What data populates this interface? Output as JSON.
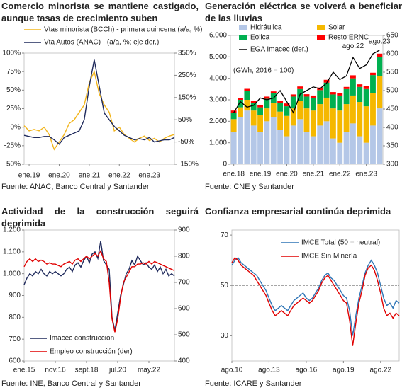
{
  "chart_data": [
    {
      "type": "line",
      "title": "Comercio minorista se mantiene castigado, aunque tasas de crecimiento suben",
      "source": "Fuente: ANAC, Banco Central y Santander",
      "categories": [
        null,
        "ene.19",
        null,
        null,
        null,
        null,
        null,
        "ene.20",
        null,
        null,
        null,
        null,
        null,
        "ene.21",
        null,
        null,
        null,
        null,
        null,
        "ene.22",
        null,
        null,
        null,
        null,
        null,
        "ene.23",
        null,
        null,
        null,
        null,
        null
      ],
      "series": [
        {
          "name": "Vtas minorista (BCCh) - primera quincena (a/a, %)",
          "color": "#f2b51c",
          "values": [
            2,
            -5,
            -3,
            -5,
            0,
            -10,
            -30,
            -20,
            -10,
            5,
            10,
            20,
            30,
            60,
            75,
            45,
            30,
            20,
            -5,
            0,
            -10,
            -15,
            -20,
            -15,
            -12,
            -18,
            -15,
            -20,
            -15,
            -12,
            -10
          ]
        },
        {
          "name": "Vta Autos (ANAC) - (a/a, %; eje der.)",
          "color": "#1f2a5c",
          "axis": "y2",
          "values": [
            -20,
            -25,
            -30,
            -30,
            -25,
            -25,
            -40,
            -60,
            -30,
            -20,
            -10,
            0,
            50,
            200,
            320,
            200,
            80,
            50,
            20,
            0,
            -20,
            -30,
            -40,
            -35,
            -40,
            -30,
            -50,
            -45,
            -40,
            -40,
            -30
          ]
        }
      ],
      "ylim": [
        -50,
        100
      ],
      "yticks": [
        {
          "value": -50,
          "label": "-50%"
        },
        {
          "value": -25,
          "label": "-25%"
        },
        {
          "value": 0,
          "label": "0%"
        },
        {
          "value": 25,
          "label": "25%"
        },
        {
          "value": 50,
          "label": "50%"
        },
        {
          "value": 75,
          "label": "75%"
        },
        {
          "value": 100,
          "label": "100%"
        }
      ],
      "y2lim": [
        -150,
        350
      ],
      "y2ticks": [
        {
          "value": -150,
          "label": "-150%"
        },
        {
          "value": -50,
          "label": "-50%"
        },
        {
          "value": 50,
          "label": "50%"
        },
        {
          "value": 150,
          "label": "150%"
        },
        {
          "value": 250,
          "label": "250%"
        },
        {
          "value": 350,
          "label": "350%"
        }
      ]
    },
    {
      "type": "bar",
      "stacked": true,
      "title": "Generación eléctrica se volverá a beneficiar de las lluvias",
      "source": "Fuente: CNE y Santander",
      "annotations": [
        "(GWh; 2016 = 100)",
        "ago.22",
        "ago.23"
      ],
      "categories": [
        "ene.18",
        null,
        null,
        null,
        "ene.19",
        null,
        null,
        null,
        "ene.20",
        null,
        null,
        null,
        "ene.21",
        null,
        null,
        null,
        "ene.22",
        null,
        null,
        null,
        "ene.23",
        null,
        null
      ],
      "series": [
        {
          "name": "Hidráulica",
          "color": "#b4c7e7",
          "values": [
            1500,
            2200,
            2500,
            1800,
            1500,
            2000,
            2200,
            1600,
            1300,
            1800,
            2100,
            1500,
            1300,
            1800,
            2000,
            1200,
            1000,
            1500,
            1900,
            1300,
            1000,
            1800,
            2600
          ]
        },
        {
          "name": "Solar",
          "color": "#f5b800",
          "values": [
            600,
            450,
            500,
            700,
            800,
            600,
            650,
            850,
            950,
            800,
            850,
            1100,
            1200,
            1000,
            1100,
            1400,
            1500,
            1300,
            1300,
            1600,
            1700,
            1500,
            1500
          ]
        },
        {
          "name": "Eolica",
          "color": "#00b050",
          "values": [
            300,
            350,
            400,
            350,
            350,
            450,
            450,
            400,
            450,
            550,
            550,
            550,
            600,
            650,
            700,
            650,
            700,
            700,
            800,
            700,
            800,
            850,
            900
          ]
        },
        {
          "name": "Resto ERNC",
          "color": "#ff0000",
          "values": [
            100,
            90,
            110,
            100,
            120,
            100,
            90,
            110,
            130,
            100,
            120,
            110,
            100,
            120,
            130,
            110,
            120,
            100,
            140,
            120,
            130,
            110,
            150
          ]
        },
        {
          "name": "EGA Imacec (der.)",
          "color": "#000000",
          "axis": "y2",
          "type": "line",
          "values": [
            440,
            470,
            455,
            460,
            480,
            475,
            480,
            500,
            470,
            440,
            490,
            500,
            510,
            505,
            520,
            550,
            530,
            540,
            590,
            560,
            570,
            600,
            610
          ]
        }
      ],
      "ylim": [
        0,
        6000
      ],
      "yticks": [
        0,
        {
          "value": 1000,
          "label": "1.000"
        },
        {
          "value": 2000,
          "label": "2.000"
        },
        {
          "value": 3000,
          "label": "3.000"
        },
        {
          "value": 4000,
          "label": "4.000"
        },
        {
          "value": 5000,
          "label": "5.000"
        },
        {
          "value": 6000,
          "label": "6.000"
        }
      ],
      "y2lim": [
        300,
        650
      ],
      "y2ticks": [
        300,
        350,
        400,
        450,
        500,
        550,
        600,
        650
      ]
    },
    {
      "type": "line",
      "title": "Actividad de la construcción seguirá deprimida",
      "source": "Fuente: INE, Banco Central y Santander",
      "categories": [
        "ene.15",
        null,
        null,
        null,
        null,
        null,
        null,
        null,
        null,
        null,
        null,
        "nov.16",
        null,
        null,
        null,
        null,
        null,
        null,
        null,
        null,
        null,
        null,
        "sept.18",
        null,
        null,
        null,
        null,
        null,
        null,
        null,
        null,
        null,
        null,
        "jul.20",
        null,
        null,
        null,
        null,
        null,
        null,
        null,
        null,
        null,
        null,
        "may.22",
        null,
        null,
        null,
        null,
        null,
        null,
        null,
        null,
        null
      ],
      "series": [
        {
          "name": "Imacec construcción",
          "color": "#1f2a5c",
          "values": [
            950,
            980,
            1000,
            990,
            1010,
            1000,
            1020,
            1000,
            990,
            1010,
            1000,
            1010,
            1000,
            990,
            1000,
            1020,
            1030,
            1010,
            1040,
            1050,
            1030,
            1060,
            1080,
            1050,
            1090,
            1100,
            1070,
            1150,
            1060,
            1040,
            1020,
            800,
            740,
            820,
            900,
            950,
            1000,
            1020,
            1060,
            1040,
            1080,
            1060,
            1040,
            1050,
            1030,
            1020,
            1040,
            1010,
            1030,
            1000,
            1020,
            990,
            1000,
            990
          ]
        },
        {
          "name": "Empleo construcción (der)",
          "color": "#e00000",
          "axis": "y2",
          "values": [
            760,
            780,
            790,
            780,
            790,
            780,
            785,
            780,
            770,
            775,
            770,
            770,
            765,
            760,
            770,
            775,
            780,
            770,
            785,
            790,
            780,
            790,
            800,
            790,
            800,
            810,
            800,
            820,
            790,
            780,
            700,
            560,
            510,
            560,
            640,
            700,
            720,
            740,
            760,
            760,
            770,
            770,
            775,
            770,
            780,
            770,
            780,
            775,
            770,
            765,
            760,
            755,
            750,
            745
          ]
        }
      ],
      "ylim": [
        600,
        1200
      ],
      "yticks": [
        600,
        700,
        800,
        900,
        {
          "value": 1000,
          "label": "1.000"
        },
        {
          "value": 1100,
          "label": "1.100"
        },
        {
          "value": 1200,
          "label": "1.200"
        }
      ],
      "y2lim": [
        400,
        900
      ],
      "y2ticks": [
        400,
        500,
        600,
        700,
        800,
        900
      ]
    },
    {
      "type": "line",
      "title": "Confianza empresarial continúa deprimida",
      "source": "Fuente: ICARE y Santander",
      "hline": 50,
      "categories": [
        "ago.10",
        null,
        null,
        null,
        null,
        null,
        null,
        null,
        null,
        null,
        null,
        null,
        "ago.13",
        null,
        null,
        null,
        null,
        null,
        null,
        null,
        null,
        null,
        null,
        null,
        "ago.16",
        null,
        null,
        null,
        null,
        null,
        null,
        null,
        null,
        null,
        null,
        null,
        "ago.19",
        null,
        null,
        null,
        null,
        null,
        null,
        null,
        null,
        null,
        null,
        null,
        "ago.22",
        null,
        null,
        null,
        null,
        null,
        null
      ],
      "series": [
        {
          "name": "IMCE Total (50 = neutral)",
          "color": "#2e75b6",
          "values": [
            58,
            60,
            61,
            59,
            58,
            57,
            56,
            55,
            54,
            52,
            50,
            48,
            45,
            42,
            40,
            41,
            42,
            41,
            40,
            42,
            44,
            45,
            46,
            47,
            45,
            44,
            45,
            47,
            49,
            52,
            54,
            55,
            53,
            52,
            50,
            48,
            46,
            45,
            40,
            30,
            38,
            45,
            50,
            55,
            58,
            60,
            58,
            55,
            50,
            45,
            42,
            43,
            41,
            44,
            43
          ]
        },
        {
          "name": "IMCE Sin Minería",
          "color": "#e00000",
          "values": [
            59,
            61,
            60,
            58,
            57,
            56,
            55,
            54,
            52,
            50,
            48,
            46,
            43,
            40,
            38,
            39,
            40,
            39,
            38,
            40,
            42,
            43,
            44,
            45,
            44,
            43,
            44,
            46,
            48,
            51,
            53,
            54,
            52,
            50,
            48,
            46,
            44,
            43,
            36,
            26,
            35,
            43,
            48,
            54,
            57,
            58,
            56,
            52,
            47,
            41,
            38,
            39,
            37,
            39,
            38
          ]
        }
      ],
      "ylim": [
        20,
        72
      ],
      "yticks": [
        30,
        50,
        70
      ]
    }
  ]
}
